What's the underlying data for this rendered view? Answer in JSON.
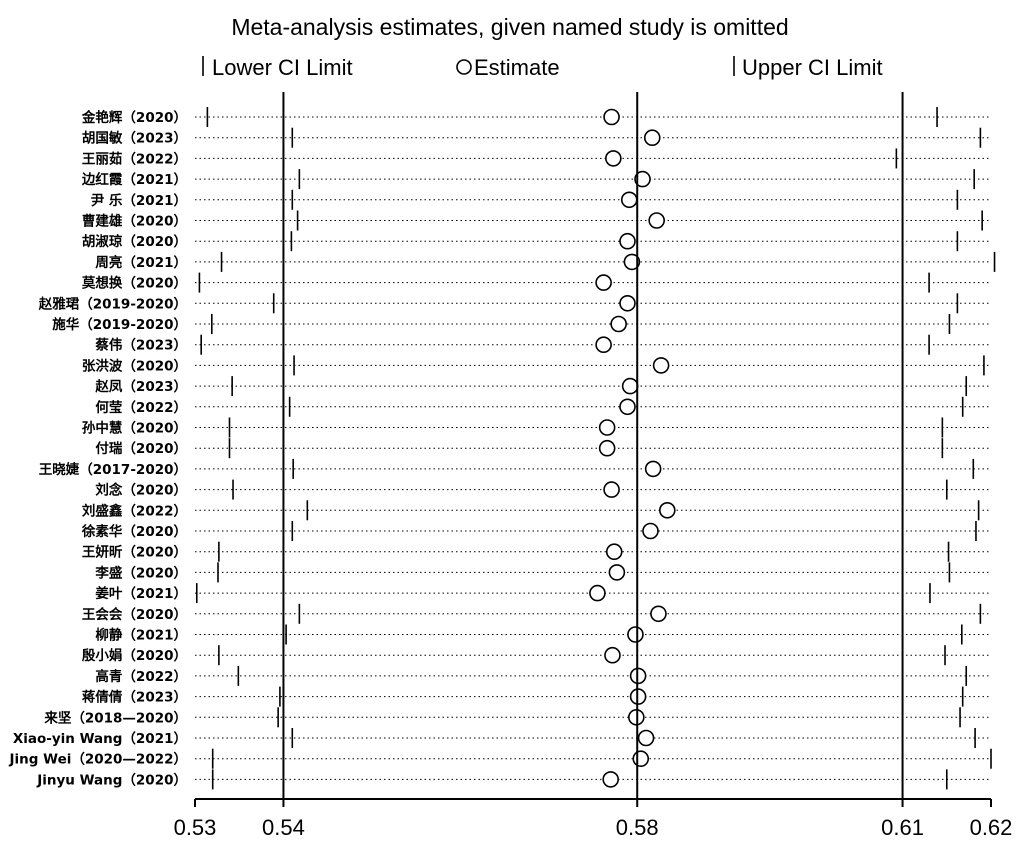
{
  "chart_data": {
    "type": "scatter",
    "title": "Meta-analysis estimates, given named study is omitted",
    "legend": {
      "position": "top",
      "lower": "Lower CI Limit",
      "estimate": "Estimate",
      "upper": "Upper CI Limit"
    },
    "x_axis": {
      "xlim": [
        0.53,
        0.62
      ],
      "tick_values": [
        0.53,
        0.54,
        0.58,
        0.61,
        0.62
      ],
      "tick_labels": [
        "0.53",
        "0.54",
        "0.58",
        "0.61",
        "0.62"
      ],
      "reference_lines": [
        0.54,
        0.58,
        0.61
      ]
    },
    "studies": [
      {
        "label": "金艳辉（2020）",
        "lower": 0.5314,
        "estimate": 0.5771,
        "upper": 0.6139
      },
      {
        "label": "胡国敏（2023）",
        "lower": 0.541,
        "estimate": 0.5817,
        "upper": 0.6188
      },
      {
        "label": "王丽茹（2022）",
        "lower": 0.54,
        "estimate": 0.5773,
        "upper": 0.6093
      },
      {
        "label": "边红霞（2021）",
        "lower": 0.5418,
        "estimate": 0.5806,
        "upper": 0.6181
      },
      {
        "label": "尹 乐（2021）",
        "lower": 0.541,
        "estimate": 0.5791,
        "upper": 0.6162
      },
      {
        "label": "曹建雄（2020）",
        "lower": 0.5416,
        "estimate": 0.5822,
        "upper": 0.619
      },
      {
        "label": "胡淑琼（2020）",
        "lower": 0.5409,
        "estimate": 0.5789,
        "upper": 0.6162
      },
      {
        "label": "周亮（2021）",
        "lower": 0.533,
        "estimate": 0.5794,
        "upper": 0.6204
      },
      {
        "label": "莫想换（2020）",
        "lower": 0.5305,
        "estimate": 0.5762,
        "upper": 0.613
      },
      {
        "label": "赵雅珺（2019-2020）",
        "lower": 0.5389,
        "estimate": 0.5789,
        "upper": 0.6162
      },
      {
        "label": "施华（2019-2020）",
        "lower": 0.5319,
        "estimate": 0.5779,
        "upper": 0.6153
      },
      {
        "label": "蔡伟（2023）",
        "lower": 0.5307,
        "estimate": 0.5762,
        "upper": 0.613
      },
      {
        "label": "张洪波（2020）",
        "lower": 0.5412,
        "estimate": 0.5827,
        "upper": 0.6192
      },
      {
        "label": "赵凤（2023）",
        "lower": 0.5342,
        "estimate": 0.5792,
        "upper": 0.6172
      },
      {
        "label": "何莹（2022）",
        "lower": 0.5407,
        "estimate": 0.5789,
        "upper": 0.6168
      },
      {
        "label": "孙中慧（2020）",
        "lower": 0.5339,
        "estimate": 0.5766,
        "upper": 0.6145
      },
      {
        "label": "付瑞（2020）",
        "lower": 0.5339,
        "estimate": 0.5766,
        "upper": 0.6145
      },
      {
        "label": "王晓婕（2017-2020）",
        "lower": 0.5411,
        "estimate": 0.5818,
        "upper": 0.618
      },
      {
        "label": "刘念（2020）",
        "lower": 0.5343,
        "estimate": 0.5771,
        "upper": 0.615
      },
      {
        "label": "刘盛鑫（2022）",
        "lower": 0.5427,
        "estimate": 0.5834,
        "upper": 0.6186
      },
      {
        "label": "徐素华（2020）",
        "lower": 0.541,
        "estimate": 0.5815,
        "upper": 0.6183
      },
      {
        "label": "王妍昕（2020）",
        "lower": 0.5327,
        "estimate": 0.5774,
        "upper": 0.6152
      },
      {
        "label": "李盛（2020）",
        "lower": 0.5326,
        "estimate": 0.5777,
        "upper": 0.6153
      },
      {
        "label": "姜叶（2021）",
        "lower": 0.5302,
        "estimate": 0.5755,
        "upper": 0.6131
      },
      {
        "label": "王会会（2020）",
        "lower": 0.5418,
        "estimate": 0.5824,
        "upper": 0.6188
      },
      {
        "label": "柳静（2021）",
        "lower": 0.5403,
        "estimate": 0.5798,
        "upper": 0.6167
      },
      {
        "label": "殷小娟（2020）",
        "lower": 0.5327,
        "estimate": 0.5772,
        "upper": 0.6148
      },
      {
        "label": "高青（2022）",
        "lower": 0.5349,
        "estimate": 0.5801,
        "upper": 0.6172
      },
      {
        "label": "蒋倩倩（2023）",
        "lower": 0.5396,
        "estimate": 0.5801,
        "upper": 0.6168
      },
      {
        "label": "来坚（2018—2020）",
        "lower": 0.5394,
        "estimate": 0.5799,
        "upper": 0.6165
      },
      {
        "label": "Xiao-yin Wang（2021）",
        "lower": 0.541,
        "estimate": 0.581,
        "upper": 0.6182
      },
      {
        "label": "Jing Wei（2020—2022）",
        "lower": 0.532,
        "estimate": 0.5804,
        "upper": 0.62
      },
      {
        "label": "Jinyu Wang（2020）",
        "lower": 0.532,
        "estimate": 0.577,
        "upper": 0.615
      }
    ]
  }
}
